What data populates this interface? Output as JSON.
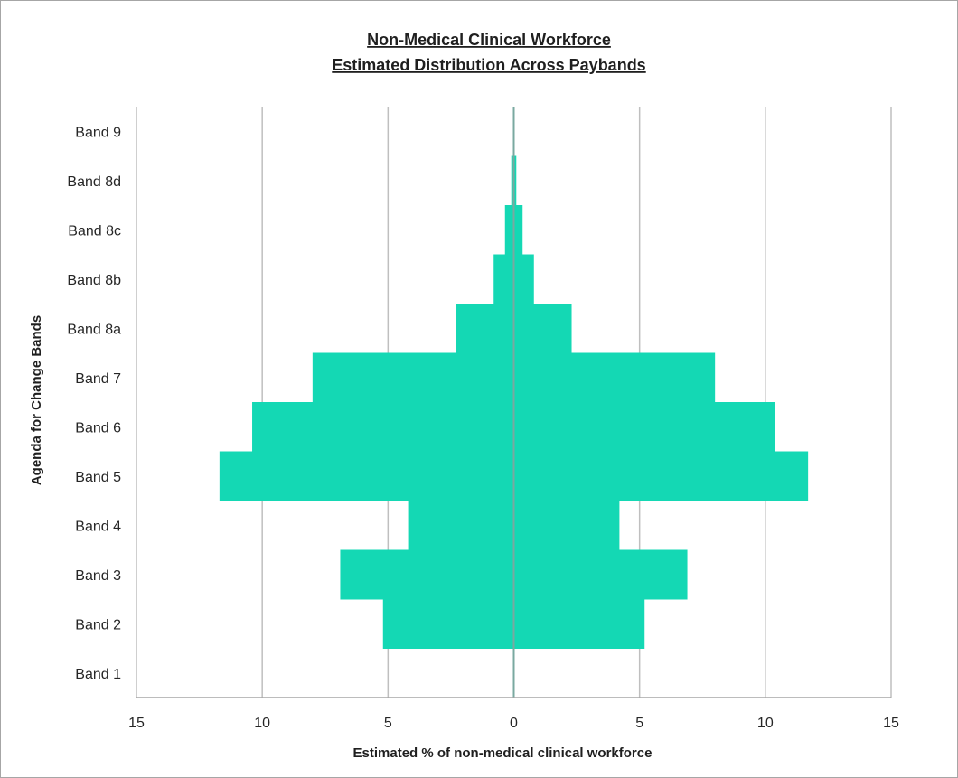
{
  "chart_data": {
    "type": "bar",
    "orientation": "horizontal",
    "layout": "population-pyramid (mirrored around 0)",
    "title_lines": [
      "Non-Medical Clinical Workforce",
      "Estimated Distribution Across Paybands"
    ],
    "xlabel": "Estimated % of non-medical clinical workforce",
    "ylabel": "Agenda for Change Bands",
    "categories": [
      "Band 1",
      "Band 2",
      "Band 3",
      "Band 4",
      "Band 5",
      "Band 6",
      "Band 7",
      "Band 8a",
      "Band 8b",
      "Band 8c",
      "Band 8d",
      "Band 9"
    ],
    "values": [
      0,
      5.2,
      6.9,
      4.2,
      11.7,
      10.4,
      8.0,
      2.3,
      0.8,
      0.35,
      0.1,
      0
    ],
    "xlim": [
      -15,
      15
    ],
    "x_ticks": [
      -15,
      -10,
      -5,
      0,
      5,
      10,
      15
    ],
    "x_tick_labels": [
      "15",
      "10",
      "5",
      "0",
      "5",
      "10",
      "15"
    ],
    "grid": "vertical major gridlines",
    "legend": "none",
    "colors": {
      "bar": "#14d8b4",
      "gridline": "#bfbfbf",
      "axis": "#a6a6a6",
      "center_line": "#7aa9a0"
    }
  }
}
